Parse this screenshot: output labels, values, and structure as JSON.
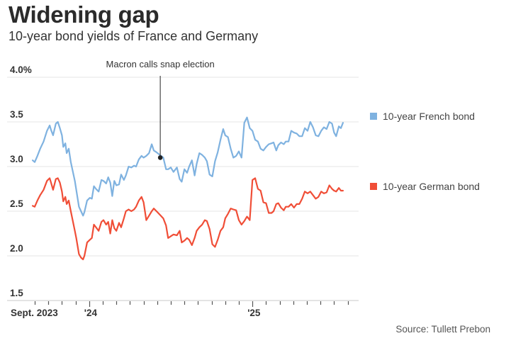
{
  "header": {
    "title": "Widening gap",
    "subtitle": "10-year bond yields of France and Germany"
  },
  "footer": {
    "source": "Source: Tullett Prebon"
  },
  "chart_data": {
    "type": "line",
    "title": "Widening gap",
    "subtitle": "10-year bond yields of France and Germany",
    "xlabel": "",
    "ylabel": "",
    "x_unit": "months since Sept. 2023",
    "xlim": [
      -2,
      23.5
    ],
    "ylim": [
      1.5,
      4.0
    ],
    "grid": true,
    "y_ticks": [
      {
        "value": 4.0,
        "label": "4.0%"
      },
      {
        "value": 3.5,
        "label": "3.5"
      },
      {
        "value": 3.0,
        "label": "3.0"
      },
      {
        "value": 2.5,
        "label": "2.5"
      },
      {
        "value": 2.0,
        "label": "2.0"
      },
      {
        "value": 1.5,
        "label": "1.5"
      }
    ],
    "x_ticks": [
      0,
      1,
      2,
      3,
      4,
      5,
      6,
      7,
      8,
      9,
      10,
      11,
      12,
      13,
      14,
      15,
      16,
      17,
      18,
      19,
      20,
      21,
      22,
      23
    ],
    "x_tick_labels": [
      {
        "value": 0,
        "label": "Sept. 2023"
      },
      {
        "value": 4,
        "label": "'24"
      },
      {
        "value": 16,
        "label": "'25"
      }
    ],
    "legend": {
      "placement": "right"
    },
    "annotations": [
      {
        "text": "Macron calls snap election",
        "x": 9.2,
        "y": 3.1
      }
    ],
    "series": [
      {
        "name": "10-year French bond",
        "color": "#7fb2e0",
        "x": [
          -0.15,
          0,
          0.2,
          0.4,
          0.65,
          0.9,
          1.1,
          1.2,
          1.35,
          1.55,
          1.7,
          1.85,
          2.0,
          2.1,
          2.25,
          2.35,
          2.5,
          2.65,
          2.95,
          3.05,
          3.25,
          3.4,
          3.55,
          3.65,
          3.85,
          4.05,
          4.2,
          4.35,
          4.5,
          4.7,
          4.9,
          5.05,
          5.25,
          5.4,
          5.55,
          5.7,
          5.85,
          6.0,
          6.2,
          6.35,
          6.55,
          6.7,
          6.9,
          7.1,
          7.3,
          7.45,
          7.65,
          7.85,
          8.0,
          8.2,
          8.4,
          8.6,
          8.75,
          8.95,
          9.2,
          9.45,
          9.65,
          9.8,
          10.0,
          10.2,
          10.45,
          10.65,
          10.8,
          11.0,
          11.2,
          11.35,
          11.55,
          11.75,
          11.9,
          12.1,
          12.3,
          12.5,
          12.65,
          12.85,
          13.05,
          13.25,
          13.45,
          13.65,
          13.85,
          14.0,
          14.2,
          14.4,
          14.6,
          14.8,
          15.0,
          15.2,
          15.4,
          15.6,
          15.8,
          16.0,
          16.2,
          16.4,
          16.6,
          16.8,
          17.0,
          17.2,
          17.4,
          17.55,
          17.75,
          17.9,
          18.1,
          18.3,
          18.45,
          18.65,
          18.85,
          19.05,
          19.25,
          19.45,
          19.65,
          19.85,
          20.05,
          20.25,
          20.45,
          20.65,
          20.85,
          21.05,
          21.25,
          21.45,
          21.65,
          21.85,
          22.0,
          22.15,
          22.35,
          22.5,
          22.65
        ],
        "values": [
          3.07,
          3.05,
          3.12,
          3.2,
          3.28,
          3.4,
          3.46,
          3.41,
          3.35,
          3.48,
          3.5,
          3.43,
          3.35,
          3.22,
          3.26,
          3.15,
          3.2,
          3.05,
          2.84,
          2.74,
          2.55,
          2.5,
          2.45,
          2.49,
          2.62,
          2.65,
          2.64,
          2.78,
          2.75,
          2.72,
          2.85,
          2.84,
          2.81,
          2.88,
          2.82,
          2.67,
          2.84,
          2.79,
          2.8,
          2.91,
          2.85,
          2.9,
          3.0,
          2.99,
          3.01,
          3.0,
          3.08,
          3.12,
          3.1,
          3.12,
          3.15,
          3.25,
          3.18,
          3.16,
          3.13,
          3.1,
          2.97,
          2.97,
          2.99,
          2.94,
          2.99,
          2.86,
          2.83,
          2.97,
          2.93,
          3.0,
          3.07,
          2.9,
          3.03,
          3.15,
          3.13,
          3.1,
          3.06,
          2.91,
          2.89,
          3.06,
          3.16,
          3.3,
          3.42,
          3.35,
          3.33,
          3.2,
          3.1,
          3.12,
          3.17,
          3.1,
          3.49,
          3.55,
          3.43,
          3.4,
          3.3,
          3.28,
          3.2,
          3.18,
          3.22,
          3.25,
          3.26,
          3.27,
          3.18,
          3.24,
          3.27,
          3.25,
          3.28,
          3.28,
          3.4,
          3.38,
          3.37,
          3.34,
          3.34,
          3.43,
          3.4,
          3.5,
          3.44,
          3.35,
          3.34,
          3.4,
          3.44,
          3.42,
          3.5,
          3.48,
          3.38,
          3.34,
          3.45,
          3.43,
          3.49
        ],
        "note": "values approximated from gridlines"
      },
      {
        "name": "10-year German bond",
        "color": "#f04e37",
        "x": [
          -0.15,
          0,
          0.2,
          0.4,
          0.65,
          0.9,
          1.1,
          1.2,
          1.35,
          1.55,
          1.7,
          1.85,
          2.0,
          2.1,
          2.25,
          2.35,
          2.5,
          2.65,
          2.95,
          3.05,
          3.25,
          3.4,
          3.55,
          3.65,
          3.85,
          4.05,
          4.2,
          4.35,
          4.5,
          4.7,
          4.9,
          5.05,
          5.25,
          5.4,
          5.55,
          5.7,
          5.85,
          6.0,
          6.2,
          6.35,
          6.55,
          6.7,
          6.9,
          7.1,
          7.3,
          7.45,
          7.65,
          7.85,
          8.0,
          8.2,
          8.4,
          8.6,
          8.75,
          8.95,
          9.2,
          9.45,
          9.65,
          9.8,
          10.0,
          10.2,
          10.45,
          10.65,
          10.8,
          11.0,
          11.2,
          11.35,
          11.55,
          11.75,
          11.9,
          12.1,
          12.3,
          12.5,
          12.65,
          12.85,
          13.05,
          13.25,
          13.45,
          13.65,
          13.85,
          14.0,
          14.2,
          14.4,
          14.6,
          14.8,
          15.0,
          15.2,
          15.4,
          15.6,
          15.8,
          16.0,
          16.2,
          16.4,
          16.6,
          16.8,
          17.0,
          17.2,
          17.4,
          17.55,
          17.75,
          17.9,
          18.1,
          18.3,
          18.45,
          18.65,
          18.85,
          19.05,
          19.25,
          19.45,
          19.65,
          19.85,
          20.05,
          20.25,
          20.45,
          20.65,
          20.85,
          21.05,
          21.25,
          21.45,
          21.65,
          21.85,
          22.0,
          22.15,
          22.35,
          22.5,
          22.65
        ],
        "values": [
          2.56,
          2.55,
          2.62,
          2.68,
          2.74,
          2.84,
          2.87,
          2.82,
          2.74,
          2.86,
          2.87,
          2.82,
          2.72,
          2.61,
          2.66,
          2.58,
          2.62,
          2.5,
          2.28,
          2.2,
          2.02,
          1.98,
          1.96,
          2.0,
          2.15,
          2.18,
          2.2,
          2.35,
          2.32,
          2.28,
          2.38,
          2.4,
          2.35,
          2.38,
          2.25,
          2.4,
          2.31,
          2.28,
          2.37,
          2.32,
          2.42,
          2.5,
          2.52,
          2.5,
          2.52,
          2.55,
          2.62,
          2.66,
          2.6,
          2.4,
          2.45,
          2.5,
          2.53,
          2.5,
          2.46,
          2.42,
          2.34,
          2.2,
          2.22,
          2.24,
          2.23,
          2.28,
          2.15,
          2.17,
          2.2,
          2.18,
          2.12,
          2.2,
          2.28,
          2.32,
          2.35,
          2.4,
          2.39,
          2.3,
          2.13,
          2.1,
          2.18,
          2.28,
          2.32,
          2.42,
          2.47,
          2.53,
          2.52,
          2.51,
          2.4,
          2.35,
          2.39,
          2.44,
          2.4,
          2.85,
          2.87,
          2.75,
          2.73,
          2.6,
          2.59,
          2.48,
          2.48,
          2.5,
          2.58,
          2.59,
          2.54,
          2.51,
          2.55,
          2.55,
          2.58,
          2.54,
          2.58,
          2.58,
          2.64,
          2.72,
          2.7,
          2.72,
          2.68,
          2.64,
          2.66,
          2.72,
          2.7,
          2.71,
          2.79,
          2.75,
          2.73,
          2.72,
          2.76,
          2.73,
          2.73
        ],
        "note": "values approximated from gridlines"
      }
    ]
  }
}
